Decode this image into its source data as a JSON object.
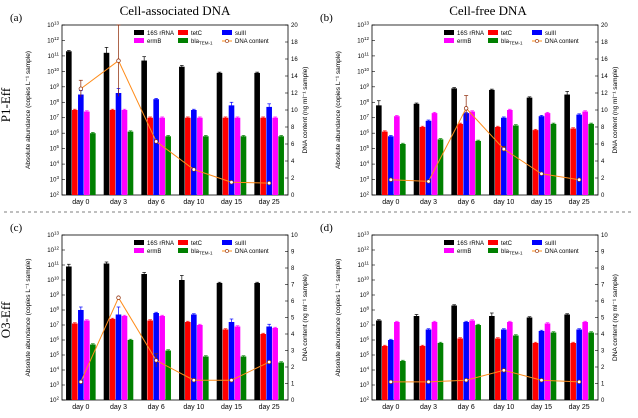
{
  "figure": {
    "col_titles": [
      "Cell-associated DNA",
      "Cell-free DNA"
    ],
    "row_labels": [
      "P1-Eff",
      "O3-Eff"
    ]
  },
  "colors": {
    "16S rRNA": "#000000",
    "tetC": "#ff0000",
    "sulII": "#0000ff",
    "ermB": "#ff00ff",
    "bla_TEM-1": "#008000",
    "DNA content": "#ff8c1a",
    "DNA content marker": "#8b2500"
  },
  "chart_data": [
    {
      "panel": "(a)",
      "type": "bar",
      "ylabel": "Absolute abundance (copies L⁻¹ sample)",
      "y2label": "DNA content (ng ml⁻¹ sample)",
      "log_y": true,
      "ylim_exp": [
        2,
        13
      ],
      "y2lim": [
        0,
        20
      ],
      "categories": [
        "day 0",
        "day 3",
        "day 6",
        "day 10",
        "day 15",
        "day 25"
      ],
      "series": [
        {
          "name": "16S rRNA",
          "exps": [
            11.3,
            11.2,
            10.7,
            10.3,
            9.9,
            9.9
          ],
          "errs": [
            0.05,
            0.35,
            0.25,
            0.08,
            0.05,
            0.05
          ]
        },
        {
          "name": "tetC",
          "exps": [
            7.5,
            7.5,
            7.0,
            7.0,
            7.0,
            7.0
          ],
          "errs": [
            0.05,
            0.05,
            0.05,
            0.05,
            0.05,
            0.05
          ]
        },
        {
          "name": "sulII",
          "exps": [
            8.5,
            8.6,
            8.2,
            7.5,
            7.8,
            7.7
          ],
          "errs": [
            0.25,
            0.3,
            0.05,
            0.05,
            0.2,
            0.2
          ]
        },
        {
          "name": "ermB",
          "exps": [
            7.4,
            7.5,
            7.0,
            7.0,
            7.0,
            7.0
          ],
          "errs": [
            0.05,
            0.05,
            0.05,
            0.05,
            0.05,
            0.05
          ]
        },
        {
          "name": "bla_TEM-1",
          "exps": [
            6.0,
            6.1,
            5.8,
            5.8,
            5.8,
            5.8
          ],
          "errs": [
            0.05,
            0.05,
            0.05,
            0.05,
            0.05,
            0.05
          ]
        }
      ],
      "dna_content": {
        "name": "DNA content",
        "values": [
          12.5,
          15.8,
          6.3,
          3.0,
          1.5,
          1.4
        ],
        "errs": [
          1.0,
          4.2,
          0,
          0,
          0,
          0
        ]
      }
    },
    {
      "panel": "(b)",
      "type": "bar",
      "ylabel": "Absolute abundance (copies L⁻¹ sample)",
      "y2label": "DNA content (ng ml⁻¹ sample)",
      "log_y": true,
      "ylim_exp": [
        2,
        13
      ],
      "y2lim": [
        0,
        20
      ],
      "categories": [
        "day 0",
        "day 3",
        "day 6",
        "day 10",
        "day 15",
        "day 25"
      ],
      "series": [
        {
          "name": "16S rRNA",
          "exps": [
            7.8,
            7.9,
            8.9,
            8.8,
            8.3,
            8.5
          ],
          "errs": [
            0.3,
            0.05,
            0.05,
            0.05,
            0.05,
            0.2
          ]
        },
        {
          "name": "tetC",
          "exps": [
            6.1,
            6.4,
            6.6,
            6.4,
            6.2,
            6.3
          ],
          "errs": [
            0.05,
            0.05,
            0.05,
            0.05,
            0.05,
            0.05
          ]
        },
        {
          "name": "sulII",
          "exps": [
            5.8,
            6.8,
            7.3,
            7.0,
            7.1,
            7.2
          ],
          "errs": [
            0.05,
            0.05,
            0.05,
            0.05,
            0.05,
            0.05
          ]
        },
        {
          "name": "ermB",
          "exps": [
            7.1,
            7.3,
            7.4,
            7.5,
            7.3,
            7.4
          ],
          "errs": [
            0.05,
            0.05,
            0.05,
            0.05,
            0.05,
            0.05
          ]
        },
        {
          "name": "bla_TEM-1",
          "exps": [
            5.3,
            5.6,
            5.5,
            6.5,
            6.6,
            6.6
          ],
          "errs": [
            0.05,
            0.05,
            0.05,
            0.05,
            0.05,
            0.05
          ]
        }
      ],
      "dna_content": {
        "name": "DNA content",
        "values": [
          1.8,
          1.6,
          10.2,
          5.4,
          2.5,
          1.8
        ],
        "errs": [
          0,
          0,
          1.5,
          0.3,
          0,
          0
        ]
      }
    },
    {
      "panel": "(c)",
      "type": "bar",
      "ylabel": "Absolute abundance (copies L⁻¹ sample)",
      "y2label": "DNA content (ng ml⁻¹ sample)",
      "log_y": true,
      "ylim_exp": [
        2,
        13
      ],
      "y2lim": [
        0,
        10
      ],
      "categories": [
        "day 0",
        "day 3",
        "day 6",
        "day 10",
        "day 15",
        "day 25"
      ],
      "series": [
        {
          "name": "16S rRNA",
          "exps": [
            10.9,
            11.1,
            10.4,
            10.0,
            9.8,
            9.8
          ],
          "errs": [
            0.15,
            0.1,
            0.1,
            0.3,
            0.05,
            0.05
          ]
        },
        {
          "name": "tetC",
          "exps": [
            7.1,
            7.4,
            7.3,
            7.2,
            6.7,
            6.4
          ],
          "errs": [
            0.05,
            0.05,
            0.05,
            0.05,
            0.05,
            0.05
          ]
        },
        {
          "name": "sulII",
          "exps": [
            8.0,
            7.7,
            7.8,
            7.7,
            7.2,
            6.9
          ],
          "errs": [
            0.2,
            0.5,
            0.05,
            0.05,
            0.2,
            0.15
          ]
        },
        {
          "name": "ermB",
          "exps": [
            7.3,
            7.6,
            7.6,
            7.0,
            6.9,
            6.8
          ],
          "errs": [
            0.05,
            0.05,
            0.05,
            0.05,
            0.05,
            0.05
          ]
        },
        {
          "name": "bla_TEM-1",
          "exps": [
            5.7,
            6.0,
            5.3,
            4.9,
            4.9,
            4.5
          ],
          "errs": [
            0.05,
            0.05,
            0.05,
            0.05,
            0.05,
            0.05
          ]
        }
      ],
      "dna_content": {
        "name": "DNA content",
        "values": [
          1.1,
          6.2,
          2.4,
          1.2,
          1.2,
          2.3
        ],
        "errs": [
          0,
          0,
          0.4,
          0,
          0,
          0
        ]
      }
    },
    {
      "panel": "(d)",
      "type": "bar",
      "ylabel": "Absolute abundance (copies L⁻¹ sample)",
      "y2label": "DNA content (ng ml⁻¹ sample)",
      "log_y": true,
      "ylim_exp": [
        2,
        13
      ],
      "y2lim": [
        0,
        10
      ],
      "categories": [
        "day 0",
        "day 3",
        "day 6",
        "day 10",
        "day 15",
        "day 25"
      ],
      "series": [
        {
          "name": "16S rRNA",
          "exps": [
            7.3,
            7.6,
            8.3,
            7.6,
            7.5,
            7.7
          ],
          "errs": [
            0.05,
            0.1,
            0.05,
            0.2,
            0.05,
            0.05
          ]
        },
        {
          "name": "tetC",
          "exps": [
            5.6,
            5.6,
            6.1,
            6.1,
            5.8,
            5.8
          ],
          "errs": [
            0.05,
            0.05,
            0.05,
            0.05,
            0.05,
            0.05
          ]
        },
        {
          "name": "sulII",
          "exps": [
            6.0,
            6.7,
            7.2,
            6.7,
            6.6,
            6.7
          ],
          "errs": [
            0.05,
            0.05,
            0.05,
            0.05,
            0.05,
            0.05
          ]
        },
        {
          "name": "ermB",
          "exps": [
            7.2,
            7.2,
            7.3,
            7.2,
            7.1,
            7.2
          ],
          "errs": [
            0.05,
            0.05,
            0.05,
            0.05,
            0.05,
            0.05
          ]
        },
        {
          "name": "bla_TEM-1",
          "exps": [
            4.6,
            5.8,
            7.0,
            6.3,
            6.5,
            6.5
          ],
          "errs": [
            0.05,
            0.05,
            0.05,
            0.05,
            0.05,
            0.05
          ]
        }
      ],
      "dna_content": {
        "name": "DNA content",
        "values": [
          1.1,
          1.1,
          1.2,
          1.8,
          1.2,
          1.1
        ],
        "errs": [
          0,
          0,
          0,
          0,
          0,
          0
        ]
      }
    }
  ]
}
